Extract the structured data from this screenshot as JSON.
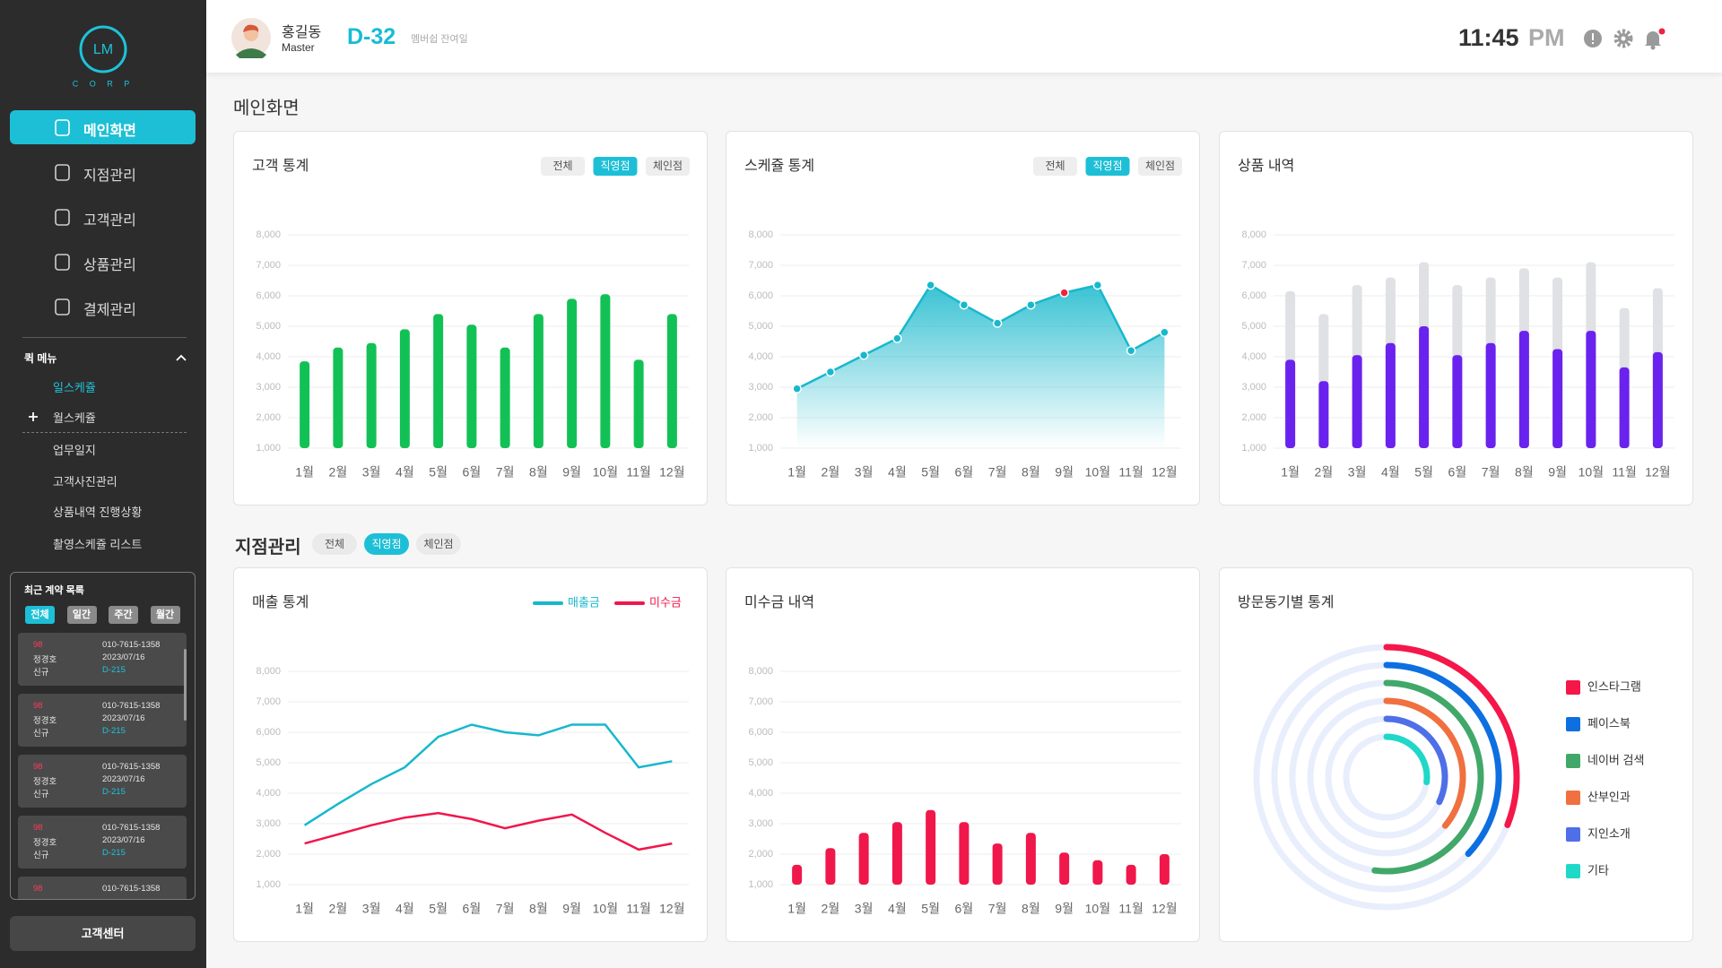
{
  "sidebar": {
    "logo": "LM",
    "logo_sub": "C O R P",
    "menu": [
      "메인화면",
      "지점관리",
      "고객관리",
      "상품관리",
      "결제관리"
    ],
    "active_menu": 0,
    "quick_menu_title": "퀵 메뉴",
    "quick_menu": [
      "일스케쥴",
      "월스케쥴",
      "업무일지",
      "고객사진관리",
      "상품내역 진행상황",
      "촬영스케쥴 리스트"
    ],
    "active_quick": 0,
    "recent_title": "최근 계약 목록",
    "recent_filters": [
      "전체",
      "일간",
      "주간",
      "월간"
    ],
    "active_recent_filter": 0,
    "recent": [
      {
        "score": "98",
        "name": "정경호",
        "type": "신규",
        "phone": "010-7615-1358",
        "date": "2023/07/16",
        "dday": "D-215"
      },
      {
        "score": "98",
        "name": "정경호",
        "type": "신규",
        "phone": "010-7615-1358",
        "date": "2023/07/16",
        "dday": "D-215"
      },
      {
        "score": "98",
        "name": "정경호",
        "type": "신규",
        "phone": "010-7615-1358",
        "date": "2023/07/16",
        "dday": "D-215"
      },
      {
        "score": "98",
        "name": "정경호",
        "type": "신규",
        "phone": "010-7615-1358",
        "date": "2023/07/16",
        "dday": "D-215"
      },
      {
        "score": "98",
        "phone": "010-7615-1358"
      }
    ],
    "support": "고객센터"
  },
  "header": {
    "name": "홍길동",
    "role": "Master",
    "dday": "D-32",
    "dday_label": "멤버쉽 잔여일",
    "time": "11:45",
    "ampm": "PM"
  },
  "sections": [
    {
      "title": "메인화면"
    },
    {
      "title": "지점관리",
      "filters": [
        "전체",
        "직영점",
        "체인점"
      ],
      "active_filter": 1
    }
  ],
  "chart_data": [
    {
      "type": "bar",
      "title": "고객 통계",
      "filters": [
        "전체",
        "직영점",
        "체인점"
      ],
      "active_filter": 1,
      "categories": [
        "1월",
        "2월",
        "3월",
        "4월",
        "5월",
        "6월",
        "7월",
        "8월",
        "9월",
        "10월",
        "11월",
        "12월"
      ],
      "values": [
        3850,
        4300,
        4450,
        4900,
        5400,
        5050,
        4300,
        5400,
        5900,
        6050,
        3900,
        5400
      ],
      "color": "#12c155",
      "ylim": [
        1000,
        8000
      ],
      "yticks": [
        {
          "value": 1000,
          "label": "1,000"
        },
        {
          "value": 2000,
          "label": "2,000"
        },
        {
          "value": 3000,
          "label": "3,000"
        },
        {
          "value": 4000,
          "label": "4,000"
        },
        {
          "value": 5000,
          "label": "5,000"
        },
        {
          "value": 6000,
          "label": "6,000"
        },
        {
          "value": 7000,
          "label": "7,000"
        },
        {
          "value": 8000,
          "label": "8,000"
        }
      ],
      "grid": true
    },
    {
      "type": "area",
      "title": "스케쥴 통계",
      "filters": [
        "전체",
        "직영점",
        "체인점"
      ],
      "active_filter": 1,
      "categories": [
        "1월",
        "2월",
        "3월",
        "4월",
        "5월",
        "6월",
        "7월",
        "8월",
        "9월",
        "10월",
        "11월",
        "12월"
      ],
      "values": [
        2950,
        3500,
        4050,
        4600,
        6350,
        5700,
        5100,
        5700,
        6100,
        6350,
        4200,
        4800
      ],
      "color": "#17b8cc",
      "highlight": {
        "index": 8,
        "color": "#ef233c"
      },
      "ylim": [
        1000,
        8000
      ],
      "yticks": [
        {
          "value": 1000,
          "label": "1,000"
        },
        {
          "value": 2000,
          "label": "2,000"
        },
        {
          "value": 3000,
          "label": "3,000"
        },
        {
          "value": 4000,
          "label": "4,000"
        },
        {
          "value": 5000,
          "label": "5,000"
        },
        {
          "value": 6000,
          "label": "6,000"
        },
        {
          "value": 7000,
          "label": "7,000"
        },
        {
          "value": 8000,
          "label": "8,000"
        }
      ],
      "grid": true
    },
    {
      "type": "bar",
      "title": "상품 내역",
      "categories": [
        "1월",
        "2월",
        "3월",
        "4월",
        "5월",
        "6월",
        "7월",
        "8월",
        "9월",
        "10월",
        "11월",
        "12월"
      ],
      "series": [
        {
          "color": "#dfe1e5",
          "values": [
            6150,
            5400,
            6350,
            6600,
            7100,
            6350,
            6600,
            6900,
            6600,
            7100,
            5600,
            6250
          ]
        },
        {
          "color": "#6a22ee",
          "values": [
            3900,
            3200,
            4050,
            4450,
            5000,
            4050,
            4450,
            4850,
            4250,
            4850,
            3650,
            4150
          ]
        }
      ],
      "ylim": [
        1000,
        8000
      ],
      "yticks": [
        {
          "value": 1000,
          "label": "1,000"
        },
        {
          "value": 2000,
          "label": "2,000"
        },
        {
          "value": 3000,
          "label": "3,000"
        },
        {
          "value": 4000,
          "label": "4,000"
        },
        {
          "value": 5000,
          "label": "5,000"
        },
        {
          "value": 6000,
          "label": "6,000"
        },
        {
          "value": 7000,
          "label": "7,000"
        },
        {
          "value": 8000,
          "label": "8,000"
        }
      ],
      "grid": true
    },
    {
      "type": "line",
      "title": "매출 통계",
      "legend": "top-right",
      "categories": [
        "1월",
        "2월",
        "3월",
        "4월",
        "5월",
        "6월",
        "7월",
        "8월",
        "9월",
        "10월",
        "11월",
        "12월"
      ],
      "series": [
        {
          "name": "매출금",
          "color": "#17b8cc",
          "values": [
            2950,
            3650,
            4300,
            4850,
            5850,
            6250,
            6000,
            5900,
            6250,
            6250,
            4850,
            5050
          ]
        },
        {
          "name": "미수금",
          "color": "#f0174b",
          "values": [
            2350,
            2650,
            2950,
            3200,
            3350,
            3150,
            2850,
            3100,
            3300,
            2700,
            2150,
            2350
          ]
        }
      ],
      "ylim": [
        1000,
        8000
      ],
      "yticks": [
        {
          "value": 1000,
          "label": "1,000"
        },
        {
          "value": 2000,
          "label": "2,000"
        },
        {
          "value": 3000,
          "label": "3,000"
        },
        {
          "value": 4000,
          "label": "4,000"
        },
        {
          "value": 5000,
          "label": "5,000"
        },
        {
          "value": 6000,
          "label": "6,000"
        },
        {
          "value": 7000,
          "label": "7,000"
        },
        {
          "value": 8000,
          "label": "8,000"
        }
      ],
      "grid": true
    },
    {
      "type": "bar",
      "title": "미수금 내역",
      "categories": [
        "1월",
        "2월",
        "3월",
        "4월",
        "5월",
        "6월",
        "7월",
        "8월",
        "9월",
        "10월",
        "11월",
        "12월"
      ],
      "values": [
        1650,
        2200,
        2700,
        3050,
        3450,
        3050,
        2350,
        2700,
        2050,
        1800,
        1650,
        2000
      ],
      "color": "#f0174b",
      "ylim": [
        1000,
        8000
      ],
      "yticks": [
        {
          "value": 1000,
          "label": "1,000"
        },
        {
          "value": 2000,
          "label": "2,000"
        },
        {
          "value": 3000,
          "label": "3,000"
        },
        {
          "value": 4000,
          "label": "4,000"
        },
        {
          "value": 5000,
          "label": "5,000"
        },
        {
          "value": 6000,
          "label": "6,000"
        },
        {
          "value": 7000,
          "label": "7,000"
        },
        {
          "value": 8000,
          "label": "8,000"
        }
      ],
      "grid": true
    },
    {
      "type": "radial-bar",
      "title": "방문동기별 통계",
      "legend": "right",
      "categories": [
        "인스타그램",
        "페이스북",
        "네이버 검색",
        "산부인과",
        "지인소개",
        "기타"
      ],
      "values": [
        31,
        37,
        52,
        36,
        32,
        27
      ],
      "colors": [
        "#f5164a",
        "#0d6fe0",
        "#41a86a",
        "#f07040",
        "#4f6fe8",
        "#1fd8c8"
      ],
      "rlim": [
        0,
        100
      ]
    }
  ]
}
